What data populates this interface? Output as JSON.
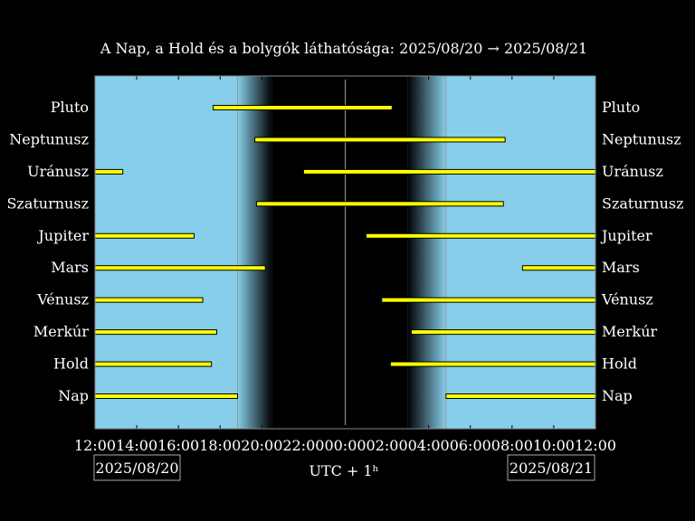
{
  "chart_data": {
    "type": "timeline",
    "title": "A Nap, a Hold és a bolygók láthatósága: 2025/08/20 → 2025/08/21",
    "xlabel": "UTC + 1ʰ",
    "x_unit": "hours",
    "xlim": [
      "2025-08-20 12:00",
      "2025-08-21 12:00"
    ],
    "x_ticks": [
      "12:00",
      "14:00",
      "16:00",
      "18:00",
      "20:00",
      "22:00",
      "00:00",
      "02:00",
      "04:00",
      "06:00",
      "08:00",
      "10:00",
      "12:00"
    ],
    "start_date": "2025/08/20",
    "end_date": "2025/08/21",
    "grid": true,
    "background": {
      "day": "#87ceeb",
      "night": "#000000"
    },
    "sunset": "18:50",
    "sunrise": "04:50",
    "twilight_end": "20:30",
    "twilight_start": "03:00",
    "midnight": "00:00",
    "bar_color": "#ffff00",
    "bodies": [
      {
        "name": "Pluto",
        "intervals": [
          [
            "2025-08-20 17:40",
            "2025-08-21 02:15"
          ]
        ]
      },
      {
        "name": "Neptunusz",
        "intervals": [
          [
            "2025-08-20 19:40",
            "2025-08-21 07:40"
          ]
        ]
      },
      {
        "name": "Uránusz",
        "intervals": [
          [
            "2025-08-20 12:00",
            "2025-08-20 13:20"
          ],
          [
            "2025-08-20 22:00",
            "2025-08-21 12:00"
          ]
        ]
      },
      {
        "name": "Szaturnusz",
        "intervals": [
          [
            "2025-08-20 19:45",
            "2025-08-21 07:35"
          ]
        ]
      },
      {
        "name": "Jupiter",
        "intervals": [
          [
            "2025-08-20 12:00",
            "2025-08-20 16:45"
          ],
          [
            "2025-08-21 01:00",
            "2025-08-21 12:00"
          ]
        ]
      },
      {
        "name": "Mars",
        "intervals": [
          [
            "2025-08-20 12:00",
            "2025-08-20 20:10"
          ],
          [
            "2025-08-21 08:30",
            "2025-08-21 12:00"
          ]
        ]
      },
      {
        "name": "Vénusz",
        "intervals": [
          [
            "2025-08-20 12:00",
            "2025-08-20 17:10"
          ],
          [
            "2025-08-21 01:45",
            "2025-08-21 12:00"
          ]
        ]
      },
      {
        "name": "Merkúr",
        "intervals": [
          [
            "2025-08-20 12:00",
            "2025-08-20 17:50"
          ],
          [
            "2025-08-21 03:10",
            "2025-08-21 12:00"
          ]
        ]
      },
      {
        "name": "Hold",
        "intervals": [
          [
            "2025-08-20 12:00",
            "2025-08-20 17:35"
          ],
          [
            "2025-08-21 02:10",
            "2025-08-21 12:00"
          ]
        ]
      },
      {
        "name": "Nap",
        "intervals": [
          [
            "2025-08-20 12:00",
            "2025-08-20 18:50"
          ],
          [
            "2025-08-21 04:50",
            "2025-08-21 12:00"
          ]
        ]
      }
    ]
  }
}
